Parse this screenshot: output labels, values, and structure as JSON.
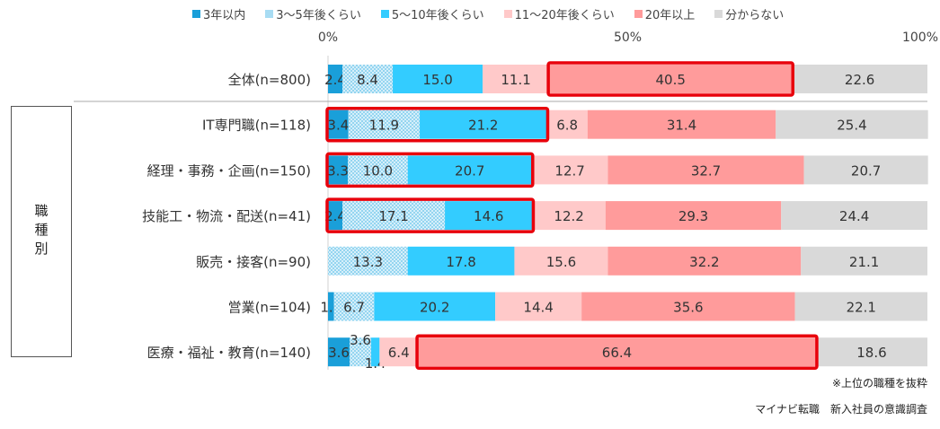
{
  "chart_data": {
    "type": "bar",
    "orientation": "horizontal",
    "stacked": "percent",
    "xlim": [
      0,
      100
    ],
    "xticks": [
      "0%",
      "50%",
      "100%"
    ],
    "legend_position": "top",
    "series": [
      {
        "name": "3年以内",
        "color": "#1a9fd9"
      },
      {
        "name": "3～5年後くらい",
        "color": "#a8dcf3",
        "pattern": "dotted"
      },
      {
        "name": "5～10年後くらい",
        "color": "#33ccff"
      },
      {
        "name": "11～20年後くらい",
        "color": "#ffc9c9"
      },
      {
        "name": "20年以上",
        "color": "#ff9b9b"
      },
      {
        "name": "分からない",
        "color": "#d9d9d9"
      }
    ],
    "categories": [
      "全体(n=800)",
      "IT専門職(n=118)",
      "経理・事務・企画(n=150)",
      "技能工・物流・配送(n=41)",
      "販売・接客(n=90)",
      "営業(n=104)",
      "医療・福祉・教育(n=140)"
    ],
    "values": [
      [
        2.4,
        8.4,
        15.0,
        11.1,
        40.5,
        22.6
      ],
      [
        3.4,
        11.9,
        21.2,
        6.8,
        31.4,
        25.4
      ],
      [
        3.3,
        10.0,
        20.7,
        12.7,
        32.7,
        20.7
      ],
      [
        2.4,
        17.1,
        14.6,
        12.2,
        29.3,
        24.4
      ],
      [
        0,
        13.3,
        17.8,
        15.6,
        32.2,
        21.1
      ],
      [
        1.0,
        6.7,
        20.2,
        14.4,
        35.6,
        22.1
      ],
      [
        3.6,
        3.6,
        1.4,
        6.4,
        66.4,
        18.6
      ]
    ],
    "highlights": [
      {
        "row": 0,
        "from_series": 4,
        "to_series": 4
      },
      {
        "row": 1,
        "from_series": 0,
        "to_series": 2
      },
      {
        "row": 2,
        "from_series": 0,
        "to_series": 2
      },
      {
        "row": 3,
        "from_series": 0,
        "to_series": 2
      },
      {
        "row": 6,
        "from_series": 4,
        "to_series": 4
      }
    ],
    "highlight_color": "#e8000b"
  },
  "group_label": "職種別",
  "note": "※上位の職種を抜粋",
  "source": "マイナビ転職　新入社員の意識調査"
}
